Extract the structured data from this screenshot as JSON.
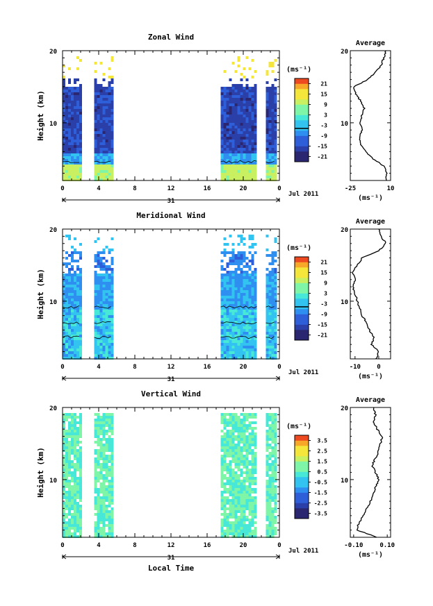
{
  "chart_data": [
    {
      "type": "heatmap",
      "title": "Zonal Wind",
      "ylabel": "Height (km)",
      "ylim": [
        2,
        20
      ],
      "y_ticks": [
        "10",
        "20"
      ],
      "x_ticks": [
        "0",
        "4",
        "8",
        "12",
        "16",
        "20",
        "0"
      ],
      "day_label": "31",
      "month_label": "Jul 2011",
      "colorbar_unit": "(ms⁻¹)",
      "colorbar_labels": [
        "21",
        "15",
        "9",
        "3",
        "-3",
        "-9",
        "-15",
        "-21"
      ],
      "colorbar_range": [
        -24,
        24
      ],
      "data_blocks_hours": [
        [
          0,
          2
        ],
        [
          3.5,
          5.5
        ],
        [
          17.5,
          21.5
        ],
        [
          22.5,
          23.5
        ]
      ],
      "average": {
        "title": "Average",
        "xlabel": "(ms⁻¹)",
        "x_ticks": [
          "-25",
          "10"
        ],
        "xlim": [
          -25,
          10
        ],
        "heights_km": [
          2,
          3,
          4,
          5,
          6,
          7,
          8,
          9,
          10,
          11,
          12,
          13,
          14,
          15,
          16,
          17,
          18,
          19,
          20
        ],
        "values": [
          6,
          7,
          4,
          -5,
          -12,
          -16,
          -17,
          -15,
          -16,
          -15,
          -13,
          -16,
          -20,
          -22,
          -10,
          -3,
          2,
          4,
          6
        ]
      }
    },
    {
      "type": "heatmap",
      "title": "Meridional Wind",
      "ylabel": "Height (km)",
      "ylim": [
        2,
        20
      ],
      "y_ticks": [
        "10",
        "20"
      ],
      "x_ticks": [
        "0",
        "4",
        "8",
        "12",
        "16",
        "20",
        "0"
      ],
      "day_label": "31",
      "month_label": "Jul 2011",
      "colorbar_unit": "(ms⁻¹)",
      "colorbar_labels": [
        "21",
        "15",
        "9",
        "3",
        "-3",
        "-9",
        "-15",
        "-21"
      ],
      "colorbar_range": [
        -24,
        24
      ],
      "data_blocks_hours": [
        [
          0,
          2
        ],
        [
          3.5,
          5.5
        ],
        [
          17.5,
          21.5
        ],
        [
          22.5,
          23.5
        ]
      ],
      "average": {
        "title": "Average",
        "xlabel": "(ms⁻¹)",
        "x_ticks": [
          "-10",
          "0"
        ],
        "xlim": [
          -12,
          5
        ],
        "heights_km": [
          2,
          3,
          4,
          5,
          6,
          7,
          8,
          9,
          10,
          11,
          12,
          13,
          14,
          15,
          16,
          17,
          18,
          19,
          20
        ],
        "values": [
          -1,
          0,
          -3,
          -2,
          -4,
          -5,
          -7,
          -8,
          -9,
          -10,
          -11,
          -10,
          -11,
          -9,
          -7,
          0,
          3,
          1,
          0
        ]
      }
    },
    {
      "type": "heatmap",
      "title": "Vertical Wind",
      "ylabel": "Height (km)",
      "xlabel": "Local Time",
      "ylim": [
        2,
        20
      ],
      "y_ticks": [
        "10",
        "20"
      ],
      "x_ticks": [
        "0",
        "4",
        "8",
        "12",
        "16",
        "20",
        "0"
      ],
      "day_label": "31",
      "month_label": "Jul 2011",
      "colorbar_unit": "(ms⁻¹)",
      "colorbar_labels": [
        "3.5",
        "2.5",
        "1.5",
        "0.5",
        "-0.5",
        "-1.5",
        "-2.5",
        "-3.5"
      ],
      "colorbar_range": [
        -4,
        4
      ],
      "data_blocks_hours": [
        [
          0,
          2
        ],
        [
          3.5,
          5.5
        ],
        [
          17.5,
          21.5
        ],
        [
          22.5,
          23.5
        ]
      ],
      "average": {
        "title": "Average",
        "xlabel": "(ms⁻¹)",
        "x_ticks": [
          "-0.10",
          "0.10"
        ],
        "xlim": [
          -0.12,
          0.12
        ],
        "heights_km": [
          2,
          3,
          4,
          5,
          6,
          7,
          8,
          9,
          10,
          11,
          12,
          13,
          14,
          15,
          16,
          17,
          18,
          19,
          20
        ],
        "values": [
          0.04,
          -0.08,
          -0.07,
          -0.04,
          -0.02,
          0.0,
          0.02,
          0.03,
          0.05,
          0.03,
          0.01,
          0.03,
          0.05,
          0.06,
          0.07,
          0.04,
          0.02,
          0.03,
          0.02
        ]
      }
    }
  ]
}
